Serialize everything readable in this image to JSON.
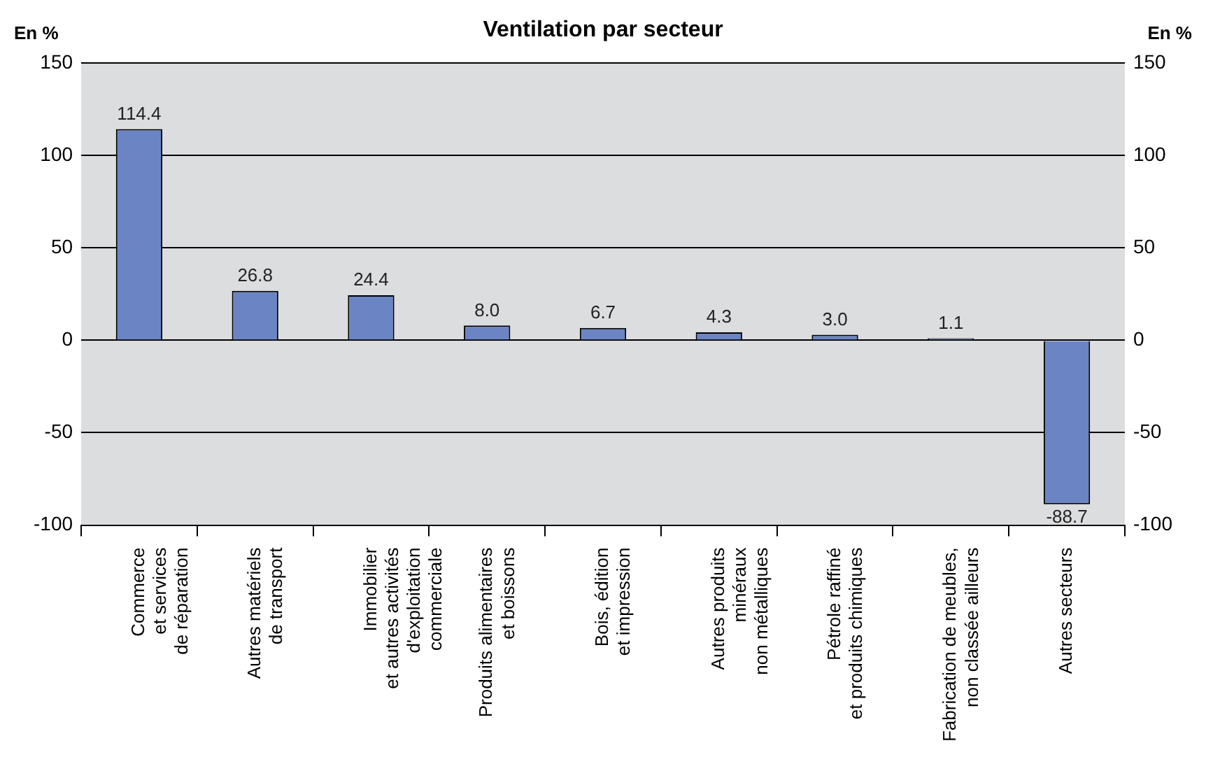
{
  "chart_data": {
    "type": "bar",
    "title": "Ventilation par secteur",
    "ylabel": "En %",
    "y2label": "En %",
    "categories": [
      "Commerce\net services\nde réparation",
      "Autres matériels\nde transport",
      "Immobilier\net autres activités\nd'exploitation\ncommerciale",
      "Produits alimentaires\net boissons",
      "Bois, édition\net impression",
      "Autres produits\nminéraux\nnon métalliques",
      "Pétrole raffiné\net produits chimiques",
      "Fabrication de meubles,\nnon classée ailleurs",
      "Autres secteurs"
    ],
    "values": [
      114.4,
      26.8,
      24.4,
      8.0,
      6.7,
      4.3,
      3.0,
      1.1,
      -88.7
    ],
    "value_labels": [
      "114.4",
      "26.8",
      "24.4",
      "8.0",
      "6.7",
      "4.3",
      "3.0",
      "1.1",
      "-88.7"
    ],
    "color": "#6b84c4",
    "ylim": [
      -100,
      150
    ],
    "yticks": [
      -100,
      -50,
      0,
      50,
      100,
      150
    ],
    "y2lim": [
      -100,
      150
    ],
    "y2ticks": [
      -100,
      -50,
      0,
      50,
      100,
      150
    ],
    "grid": "y",
    "legend": false
  }
}
